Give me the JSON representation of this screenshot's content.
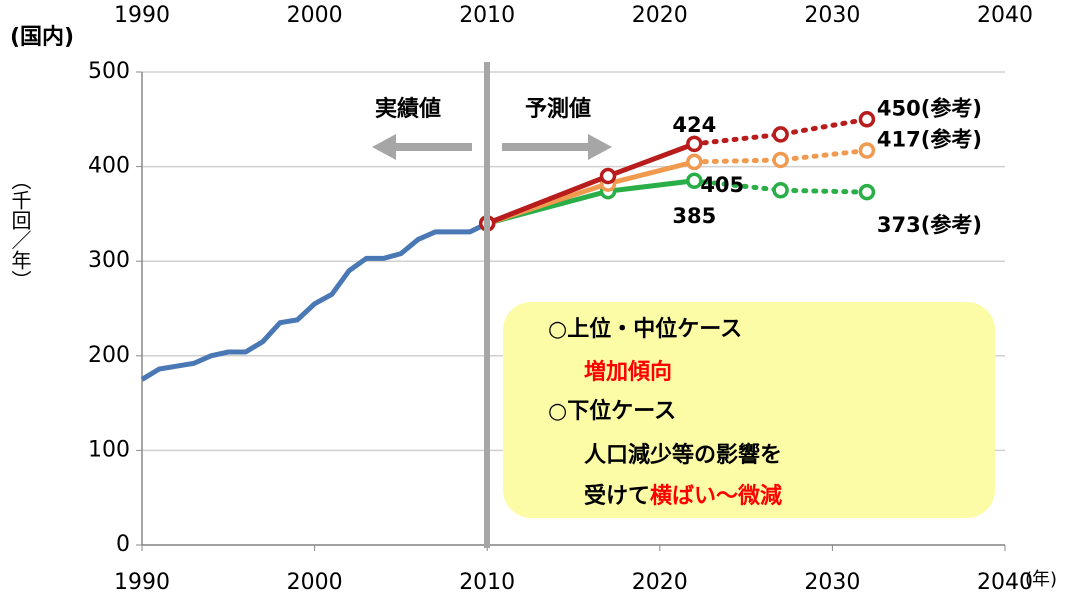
{
  "chart_data": {
    "type": "line",
    "title": "(国内)",
    "y_label": "（千回／年）",
    "x_label": "(年)",
    "xlim": [
      1990,
      2040
    ],
    "xticks": [
      1990,
      2000,
      2010,
      2020,
      2030,
      2040
    ],
    "x2ticks": [
      1990,
      2000,
      2010,
      2020,
      2030,
      2040
    ],
    "ylim": [
      0,
      500
    ],
    "yticks": [
      0,
      100,
      200,
      300,
      400,
      500
    ],
    "grid": true,
    "series": [
      {
        "color": "#4a78b4",
        "x": [
          1990,
          1991,
          1992,
          1993,
          1994,
          1995,
          1996,
          1997,
          1998,
          1999,
          2000,
          2001,
          2002,
          2003,
          2004,
          2005,
          2006,
          2007,
          2008,
          2009,
          2010
        ],
        "values": [
          175,
          186,
          189,
          192,
          200,
          204,
          204,
          215,
          235,
          238,
          255,
          265,
          290,
          303,
          303,
          308,
          323,
          331,
          331,
          331,
          340
        ]
      },
      {
        "color": "#2aae48",
        "markers": true,
        "dotted_from_index": 2,
        "x": [
          2010,
          2017,
          2022,
          2027,
          2032
        ],
        "values": [
          340,
          374,
          385,
          375,
          373
        ],
        "value_labels": [
          null,
          null,
          "385",
          null,
          "373(参考)"
        ]
      },
      {
        "color": "#f09a50",
        "markers": true,
        "dotted_from_index": 2,
        "x": [
          2010,
          2017,
          2022,
          2027,
          2032
        ],
        "values": [
          340,
          382,
          405,
          407,
          417
        ],
        "value_labels": [
          null,
          null,
          "405",
          null,
          "417(参考)"
        ]
      },
      {
        "color": "#b81c1c",
        "markers": true,
        "dotted_from_index": 2,
        "x": [
          2010,
          2017,
          2022,
          2027,
          2032
        ],
        "values": [
          340,
          390,
          424,
          434,
          450
        ],
        "value_labels": [
          null,
          null,
          "424",
          null,
          "450(参考)"
        ]
      }
    ],
    "annotations": {
      "actual": "実績値",
      "forecast": "予測値",
      "box": {
        "line1": "○上位・中位ケース",
        "line2": "増加傾向",
        "line3": "○下位ケース",
        "line4": "人口減少等の影響を",
        "line5a": "受けて",
        "line5b": "横ばい～微減"
      }
    }
  }
}
